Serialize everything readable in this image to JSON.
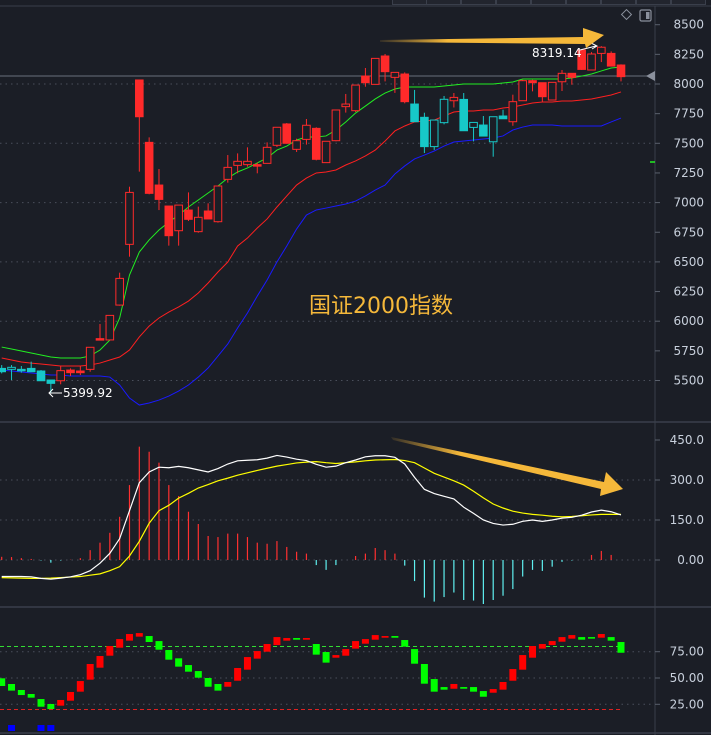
{
  "toolbar": {
    "icons": [
      "diamond-icon",
      "panel-toggle-icon"
    ]
  },
  "chart_data": [
    {
      "type": "candlestick",
      "title": "国证2000指数",
      "ylim": [
        5250,
        8600
      ],
      "yticks": [
        "8500",
        "8250",
        "8000",
        "7750",
        "7500",
        "7250",
        "7000",
        "6750",
        "6500",
        "6250",
        "6000",
        "5750",
        "5500"
      ],
      "grid": true,
      "colors": {
        "up": "#ff2a2a",
        "down": "#17c8c8",
        "ma_short": "#22ee22",
        "ma_mid": "#ff2020",
        "ma_long": "#1a1aff",
        "title": "#f5b83a"
      },
      "reference_price": 8067,
      "high_label": "8319.14",
      "low_label": "5399.92",
      "candles": [
        [
          5602,
          5630,
          5560,
          5574,
          "down"
        ],
        [
          5594,
          5630,
          5504,
          5611,
          "down"
        ],
        [
          5594,
          5622,
          5566,
          5583,
          "down"
        ],
        [
          5602,
          5659,
          5574,
          5574,
          "down"
        ],
        [
          5580,
          5588,
          5498,
          5498,
          "down"
        ],
        [
          5504,
          5504,
          5399.92,
          5476,
          "down"
        ],
        [
          5498,
          5622,
          5468,
          5583,
          "up"
        ],
        [
          5588,
          5602,
          5538,
          5566,
          "up"
        ],
        [
          5580,
          5622,
          5546,
          5566,
          "up"
        ],
        [
          5594,
          5780,
          5574,
          5780,
          "up"
        ],
        [
          5853,
          5976,
          5842,
          5842,
          "up"
        ],
        [
          5842,
          6049,
          5842,
          6049,
          "up"
        ],
        [
          6136,
          6409,
          6131,
          6361,
          "up"
        ],
        [
          6648,
          7134,
          6544,
          7086,
          "up"
        ],
        [
          8034,
          8034,
          7261,
          7724,
          "up"
        ],
        [
          7508,
          7550,
          7070,
          7078,
          "up"
        ],
        [
          7148,
          7283,
          6937,
          7027,
          "up"
        ],
        [
          6971,
          6971,
          6637,
          6721,
          "up"
        ],
        [
          6763,
          6979,
          6637,
          6979,
          "up"
        ],
        [
          6937,
          7086,
          6845,
          6859,
          "up"
        ],
        [
          6755,
          6966,
          6746,
          6876,
          "up"
        ],
        [
          6929,
          6994,
          6862,
          6862,
          "up"
        ],
        [
          6839,
          7140,
          6831,
          7140,
          "up"
        ],
        [
          7196,
          7401,
          7168,
          7297,
          "up"
        ],
        [
          7314,
          7415,
          7247,
          7348,
          "up"
        ],
        [
          7320,
          7466,
          7303,
          7348,
          "up"
        ],
        [
          7320,
          7337,
          7247,
          7314,
          "up"
        ],
        [
          7331,
          7508,
          7331,
          7466,
          "up"
        ],
        [
          7483,
          7635,
          7469,
          7635,
          "up"
        ],
        [
          7663,
          7671,
          7500,
          7500,
          "up"
        ],
        [
          7449,
          7539,
          7427,
          7522,
          "up"
        ],
        [
          7533,
          7705,
          7489,
          7652,
          "up"
        ],
        [
          7626,
          7635,
          7356,
          7365,
          "up"
        ],
        [
          7337,
          7517,
          7337,
          7517,
          "up"
        ],
        [
          7522,
          7781,
          7517,
          7781,
          "up"
        ],
        [
          7809,
          7916,
          7759,
          7831,
          "up"
        ],
        [
          7775,
          7991,
          7764,
          7991,
          "up"
        ],
        [
          8067,
          8135,
          7977,
          8011,
          "up"
        ],
        [
          7997,
          8216,
          7997,
          8216,
          "up"
        ],
        [
          8236,
          8253,
          8022,
          8104,
          "up"
        ],
        [
          8056,
          8098,
          7925,
          8098,
          "up"
        ],
        [
          8084,
          8098,
          7837,
          7851,
          "up"
        ],
        [
          7831,
          7950,
          7682,
          7682,
          "down"
        ],
        [
          7719,
          7758,
          7418,
          7472,
          "down"
        ],
        [
          7472,
          7696,
          7444,
          7696,
          "down"
        ],
        [
          7674,
          7899,
          7660,
          7871,
          "down"
        ],
        [
          7859,
          7924,
          7802,
          7887,
          "up"
        ],
        [
          7870,
          7924,
          7606,
          7606,
          "down"
        ],
        [
          7634,
          7676,
          7516,
          7676,
          "down"
        ],
        [
          7654,
          7730,
          7561,
          7561,
          "down"
        ],
        [
          7513,
          7724,
          7387,
          7724,
          "down"
        ],
        [
          7730,
          7783,
          7707,
          7707,
          "down"
        ],
        [
          7682,
          7910,
          7648,
          7851,
          "up"
        ],
        [
          7859,
          8036,
          7859,
          8028,
          "up"
        ],
        [
          8028,
          8036,
          7938,
          8011,
          "up"
        ],
        [
          8011,
          8011,
          7851,
          7893,
          "up"
        ],
        [
          7865,
          8014,
          7865,
          8014,
          "up"
        ],
        [
          8019,
          8118,
          7941,
          8090,
          "up"
        ],
        [
          8090,
          8090,
          7994,
          8056,
          "up"
        ],
        [
          8286,
          8286,
          8118,
          8123,
          "up"
        ],
        [
          8118,
          8269,
          8118,
          8253,
          "up"
        ],
        [
          8258,
          8319.14,
          8185,
          8310,
          "up"
        ],
        [
          8258,
          8275,
          8151,
          8151,
          "up"
        ],
        [
          8160,
          8166,
          8022,
          8062,
          "up"
        ]
      ],
      "ma_short": [
        5782,
        5766,
        5749,
        5732,
        5715,
        5698,
        5690,
        5690,
        5690,
        5707,
        5757,
        5841,
        6027,
        6389,
        6583,
        6685,
        6769,
        6836,
        6895,
        6963,
        7022,
        7081,
        7140,
        7207,
        7258,
        7292,
        7334,
        7376,
        7443,
        7477,
        7528,
        7553,
        7553,
        7562,
        7612,
        7680,
        7755,
        7814,
        7874,
        7924,
        7958,
        7975,
        7975,
        7975,
        7975,
        7983,
        7992,
        8000,
        8000,
        8000,
        8000,
        8008,
        8017,
        8042,
        8042,
        8042,
        8042,
        8042,
        8051,
        8067,
        8084,
        8110,
        8135,
        8143
      ],
      "ma_mid": [
        5690,
        5673,
        5656,
        5647,
        5639,
        5631,
        5622,
        5622,
        5622,
        5631,
        5647,
        5673,
        5698,
        5757,
        5867,
        5959,
        6027,
        6077,
        6120,
        6170,
        6238,
        6322,
        6415,
        6499,
        6634,
        6701,
        6786,
        6862,
        6963,
        7056,
        7148,
        7207,
        7250,
        7258,
        7275,
        7317,
        7351,
        7393,
        7443,
        7519,
        7604,
        7646,
        7680,
        7688,
        7696,
        7730,
        7764,
        7772,
        7772,
        7781,
        7781,
        7798,
        7806,
        7823,
        7840,
        7848,
        7848,
        7857,
        7857,
        7865,
        7874,
        7890,
        7907,
        7933
      ],
      "ma_long": [
        5588,
        5580,
        5572,
        5563,
        5555,
        5546,
        5546,
        5538,
        5538,
        5538,
        5538,
        5529,
        5462,
        5352,
        5293,
        5310,
        5335,
        5369,
        5411,
        5462,
        5529,
        5605,
        5706,
        5808,
        5943,
        6069,
        6212,
        6347,
        6499,
        6634,
        6777,
        6895,
        6938,
        6954,
        6971,
        6988,
        7013,
        7056,
        7106,
        7148,
        7241,
        7309,
        7368,
        7401,
        7435,
        7477,
        7511,
        7519,
        7528,
        7536,
        7545,
        7562,
        7612,
        7637,
        7654,
        7654,
        7654,
        7646,
        7646,
        7646,
        7646,
        7646,
        7680,
        7713
      ]
    },
    {
      "type": "bar",
      "ylim": [
        -180,
        480
      ],
      "yticks": [
        "450.0",
        "300.0",
        "150.0",
        "0.00"
      ],
      "colors": {
        "pos": "#ff3030",
        "neg": "#5ff0f0",
        "dif": "#ffffff",
        "dea": "#ffff00",
        "arrow": "#f5b83a"
      },
      "histogram": [
        12,
        11,
        7,
        4,
        -2,
        -10,
        -2,
        1,
        7,
        37,
        65,
        102,
        162,
        281,
        425,
        406,
        365,
        281,
        240,
        181,
        135,
        90,
        86,
        99,
        99,
        86,
        65,
        61,
        71,
        49,
        31,
        24,
        -19,
        -37,
        -19,
        0,
        15,
        24,
        45,
        37,
        24,
        -21,
        -79,
        -141,
        -156,
        -139,
        -122,
        -150,
        -152,
        -165,
        -150,
        -134,
        -109,
        -62,
        -37,
        -41,
        -25,
        -7,
        -2,
        0,
        19,
        34,
        19,
        0
      ],
      "dif": [
        -62,
        -62,
        -62,
        -63,
        -69,
        -72,
        -68,
        -63,
        -55,
        -40,
        -12,
        25,
        80,
        185,
        290,
        330,
        348,
        346,
        351,
        346,
        338,
        330,
        343,
        360,
        372,
        374,
        376,
        382,
        392,
        386,
        378,
        373,
        359,
        348,
        352,
        365,
        375,
        387,
        391,
        391,
        385,
        360,
        310,
        265,
        249,
        239,
        229,
        198,
        175,
        150,
        137,
        131,
        134,
        145,
        150,
        145,
        150,
        157,
        160,
        168,
        180,
        187,
        181,
        169
      ],
      "dea": [
        -66,
        -67,
        -68,
        -69,
        -69,
        -68,
        -66,
        -64,
        -62,
        -57,
        -52,
        -40,
        -25,
        15,
        70,
        138,
        185,
        205,
        232,
        250,
        270,
        283,
        297,
        307,
        318,
        327,
        336,
        344,
        352,
        358,
        364,
        367,
        369,
        365,
        362,
        365,
        368,
        372,
        375,
        376,
        377,
        373,
        365,
        345,
        325,
        311,
        297,
        281,
        258,
        233,
        210,
        195,
        183,
        176,
        171,
        168,
        164,
        162,
        163,
        166,
        169,
        171,
        171,
        171
      ]
    },
    {
      "type": "bar",
      "ylim": [
        0,
        100
      ],
      "yticks": [
        "75.00",
        "50.00",
        "25.00"
      ],
      "upper_line": 80,
      "lower_line": 20,
      "colors": {
        "up": "#ff0000",
        "down": "#00ff00",
        "signal": "#0000ff",
        "upper_line": "#33dd33",
        "lower_line": "#dd2222"
      },
      "blocks": [
        [
          49.7,
          42.4,
          "down"
        ],
        [
          44.3,
          38.0,
          "down"
        ],
        [
          38.6,
          33.8,
          "down"
        ],
        [
          34.8,
          31.3,
          "down"
        ],
        [
          30.0,
          22.7,
          "down"
        ],
        [
          25.3,
          20.5,
          "down"
        ],
        [
          29.1,
          23.7,
          "up"
        ],
        [
          36.7,
          28.4,
          "up"
        ],
        [
          47.1,
          37.0,
          "up"
        ],
        [
          63.3,
          48.4,
          "up"
        ],
        [
          70.9,
          59.8,
          "up"
        ],
        [
          80.4,
          71.2,
          "up"
        ],
        [
          87.0,
          78.8,
          "up"
        ],
        [
          91.8,
          85.5,
          "up"
        ],
        [
          92.7,
          89.3,
          "up"
        ],
        [
          89.9,
          84.2,
          "down"
        ],
        [
          85.1,
          76.9,
          "down"
        ],
        [
          76.6,
          67.4,
          "down"
        ],
        [
          68.7,
          60.8,
          "down"
        ],
        [
          62.3,
          56.0,
          "down"
        ],
        [
          56.6,
          50.3,
          "down"
        ],
        [
          50.0,
          41.7,
          "down"
        ],
        [
          44.3,
          38.0,
          "down"
        ],
        [
          46.2,
          41.7,
          "up"
        ],
        [
          59.5,
          47.4,
          "up"
        ],
        [
          69.9,
          57.9,
          "up"
        ],
        [
          75.6,
          68.4,
          "up"
        ],
        [
          82.3,
          75.0,
          "up"
        ],
        [
          88.9,
          81.3,
          "up"
        ],
        [
          88.0,
          85.5,
          "up"
        ],
        [
          88.0,
          86.4,
          "down"
        ],
        [
          88.0,
          86.4,
          "up"
        ],
        [
          82.3,
          72.2,
          "down"
        ],
        [
          74.7,
          64.6,
          "down"
        ],
        [
          71.8,
          69.3,
          "up"
        ],
        [
          77.5,
          71.2,
          "up"
        ],
        [
          85.1,
          77.9,
          "up"
        ],
        [
          87.0,
          82.6,
          "up"
        ],
        [
          90.8,
          86.4,
          "up"
        ],
        [
          89.9,
          88.3,
          "up"
        ],
        [
          89.9,
          88.3,
          "down"
        ],
        [
          86.1,
          79.8,
          "down"
        ],
        [
          77.5,
          63.6,
          "down"
        ],
        [
          63.3,
          44.6,
          "down"
        ],
        [
          49.0,
          37.0,
          "down"
        ],
        [
          41.4,
          38.9,
          "down"
        ],
        [
          44.3,
          39.8,
          "up"
        ],
        [
          41.4,
          39.8,
          "down"
        ],
        [
          41.4,
          37.0,
          "down"
        ],
        [
          37.6,
          32.2,
          "down"
        ],
        [
          39.5,
          36.0,
          "up"
        ],
        [
          46.2,
          38.9,
          "up"
        ],
        [
          58.5,
          47.4,
          "up"
        ],
        [
          71.8,
          57.9,
          "up"
        ],
        [
          80.4,
          69.3,
          "up"
        ],
        [
          82.3,
          77.9,
          "up"
        ],
        [
          85.1,
          81.3,
          "up"
        ],
        [
          88.9,
          84.5,
          "up"
        ],
        [
          90.8,
          87.4,
          "up"
        ],
        [
          88.9,
          86.4,
          "down"
        ],
        [
          88.9,
          87.4,
          "down"
        ],
        [
          91.8,
          88.3,
          "up"
        ],
        [
          88.9,
          85.5,
          "down"
        ],
        [
          84.2,
          74.0,
          "down"
        ]
      ],
      "signals": [
        1,
        4,
        5
      ]
    }
  ]
}
